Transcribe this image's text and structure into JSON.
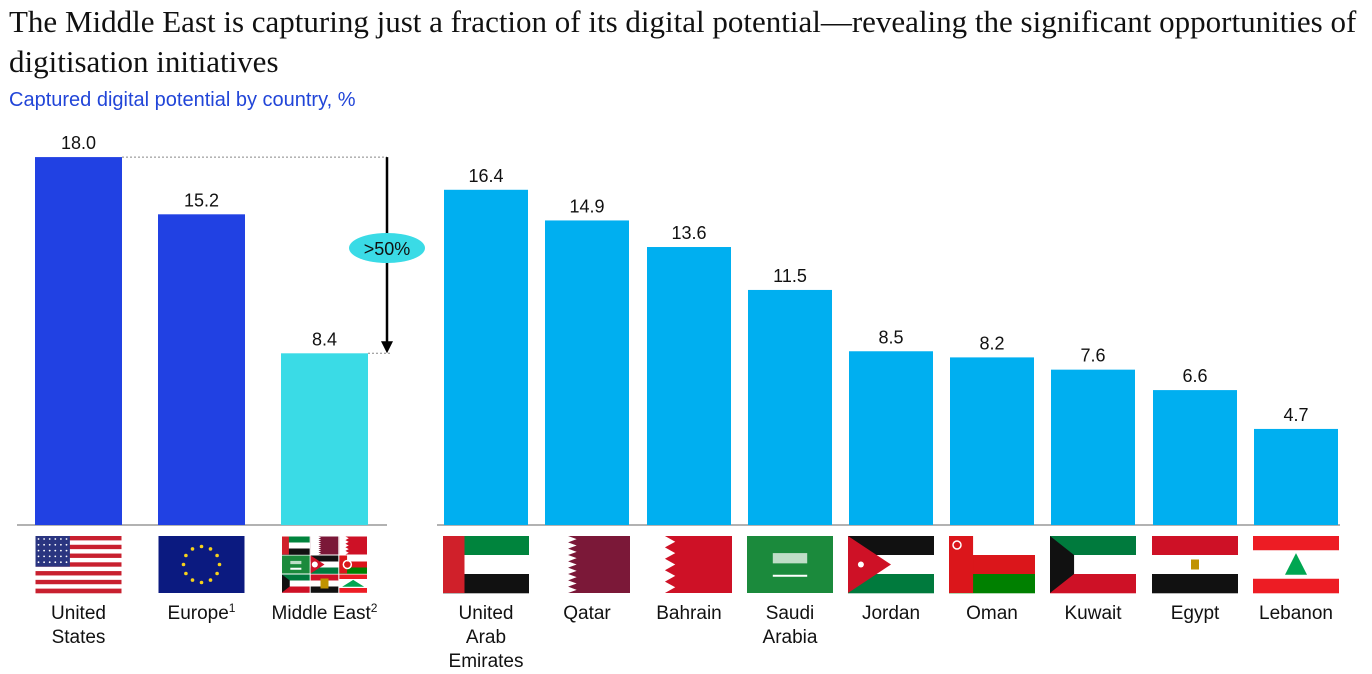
{
  "title": "The Middle East is capturing just a fraction of its digital potential—revealing the significant opportunities of digitisation initiatives",
  "subtitle": "Captured digital potential by country, %",
  "colors": {
    "benchmark": "#2141e3",
    "middle_east": "#3adbe6",
    "country": "#00aff0",
    "callout": "#3adbe6"
  },
  "chart_data": [
    {
      "type": "bar",
      "name": "benchmarks",
      "categories": [
        {
          "label": "United States",
          "lines": [
            "United",
            "States"
          ],
          "footnote": "",
          "flag": "us"
        },
        {
          "label": "Europe",
          "lines": [
            "Europe"
          ],
          "footnote": "1",
          "flag": "eu"
        },
        {
          "label": "Middle East",
          "lines": [
            "Middle East"
          ],
          "footnote": "2",
          "flag": "me"
        }
      ],
      "values": [
        18.0,
        15.2,
        8.4
      ],
      "value_labels": [
        "18.0",
        "15.2",
        "8.4"
      ],
      "ylim": [
        0,
        18.0
      ],
      "annotation": {
        "text": ">50%",
        "from": 18.0,
        "to": 8.4
      }
    },
    {
      "type": "bar",
      "name": "countries",
      "categories": [
        {
          "label": "United Arab Emirates",
          "lines": [
            "United",
            "Arab",
            "Emirates"
          ],
          "flag": "ae"
        },
        {
          "label": "Qatar",
          "lines": [
            "Qatar"
          ],
          "flag": "qa"
        },
        {
          "label": "Bahrain",
          "lines": [
            "Bahrain"
          ],
          "flag": "bh"
        },
        {
          "label": "Saudi Arabia",
          "lines": [
            "Saudi",
            "Arabia"
          ],
          "flag": "sa"
        },
        {
          "label": "Jordan",
          "lines": [
            "Jordan"
          ],
          "flag": "jo"
        },
        {
          "label": "Oman",
          "lines": [
            "Oman"
          ],
          "flag": "om"
        },
        {
          "label": "Kuwait",
          "lines": [
            "Kuwait"
          ],
          "flag": "kw"
        },
        {
          "label": "Egypt",
          "lines": [
            "Egypt"
          ],
          "flag": "eg"
        },
        {
          "label": "Lebanon",
          "lines": [
            "Lebanon"
          ],
          "flag": "lb"
        }
      ],
      "values": [
        16.4,
        14.9,
        13.6,
        11.5,
        8.5,
        8.2,
        7.6,
        6.6,
        4.7
      ],
      "value_labels": [
        "16.4",
        "14.9",
        "13.6",
        "11.5",
        "8.5",
        "8.2",
        "7.6",
        "6.6",
        "4.7"
      ],
      "ylim": [
        0,
        18.0
      ]
    }
  ]
}
